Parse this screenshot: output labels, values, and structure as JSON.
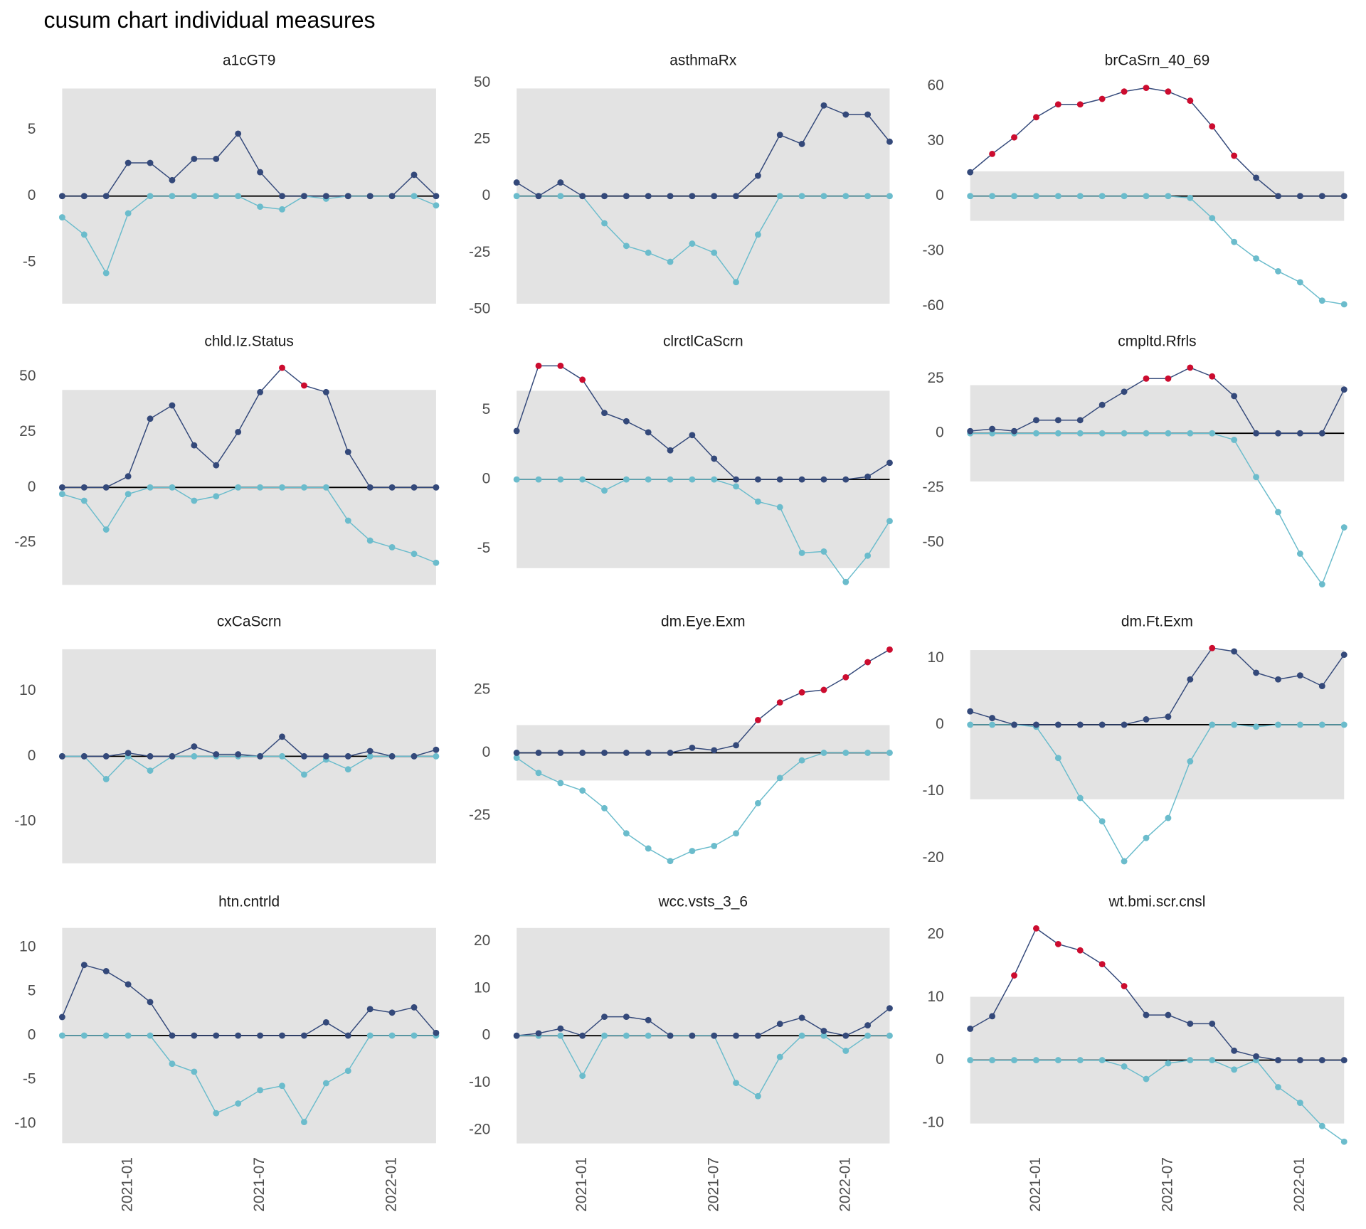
{
  "title": "cusum chart  individual measures",
  "chart_data": [
    {
      "type": "line",
      "title": "a1cGT9",
      "x": [
        "2020-10",
        "2020-11",
        "2020-12",
        "2021-01",
        "2021-02",
        "2021-03",
        "2021-04",
        "2021-05",
        "2021-06",
        "2021-07",
        "2021-08",
        "2021-09",
        "2021-10",
        "2021-11",
        "2021-12",
        "2022-01",
        "2022-02",
        "2022-03"
      ],
      "ylim": [
        -8.7,
        8.7
      ],
      "yticks": [
        -5,
        0,
        5
      ],
      "limit": 8.1,
      "band_color": "#e3e3e3",
      "series": [
        {
          "color": "#34497a",
          "alert_color": "#cc0c2f",
          "values": [
            0,
            0,
            0,
            2.5,
            2.5,
            1.2,
            2.8,
            2.8,
            4.7,
            1.8,
            0,
            0,
            0,
            0,
            0,
            0,
            1.6,
            0
          ]
        },
        {
          "color": "#6bbccc",
          "values": [
            -1.6,
            -2.9,
            -5.8,
            -1.3,
            0,
            0,
            0,
            0,
            0,
            -0.8,
            -1.0,
            0,
            -0.2,
            0,
            0,
            0,
            0,
            -0.7
          ]
        }
      ]
    },
    {
      "type": "line",
      "title": "asthmaRx",
      "x": [
        "2020-10",
        "2020-11",
        "2020-12",
        "2021-01",
        "2021-02",
        "2021-03",
        "2021-04",
        "2021-05",
        "2021-06",
        "2021-07",
        "2021-08",
        "2021-09",
        "2021-10",
        "2021-11",
        "2021-12",
        "2022-01",
        "2022-02",
        "2022-03"
      ],
      "ylim": [
        -51,
        51
      ],
      "yticks": [
        -50,
        -25,
        0,
        25,
        50
      ],
      "limit": 47.5,
      "band_color": "#e3e3e3",
      "series": [
        {
          "color": "#34497a",
          "alert_color": "#cc0c2f",
          "values": [
            6,
            0,
            6,
            0,
            0,
            0,
            0,
            0,
            0,
            0,
            0,
            9,
            27,
            23,
            40,
            36,
            36,
            24
          ]
        },
        {
          "color": "#6bbccc",
          "values": [
            0,
            0,
            0,
            0,
            -12,
            -22,
            -25,
            -29,
            -21,
            -25,
            -38,
            -17,
            0,
            0,
            0,
            0,
            0,
            0
          ]
        }
      ]
    },
    {
      "type": "line",
      "title": "brCaSrn_40_69",
      "x": [
        "2020-10",
        "2020-11",
        "2020-12",
        "2021-01",
        "2021-02",
        "2021-03",
        "2021-04",
        "2021-05",
        "2021-06",
        "2021-07",
        "2021-08",
        "2021-09",
        "2021-10",
        "2021-11",
        "2021-12",
        "2022-01",
        "2022-02",
        "2022-03"
      ],
      "ylim": [
        -63,
        63
      ],
      "yticks": [
        -60,
        -30,
        0,
        30,
        60
      ],
      "limit": 13.5,
      "band_color": "#e3e3e3",
      "series": [
        {
          "color": "#34497a",
          "alert_color": "#cc0c2f",
          "values": [
            13,
            23,
            32,
            43,
            50,
            50,
            53,
            57,
            59,
            57,
            52,
            38,
            22,
            10,
            0,
            0,
            0,
            0
          ]
        },
        {
          "color": "#6bbccc",
          "values": [
            0,
            0,
            0,
            0,
            0,
            0,
            0,
            0,
            0,
            0,
            -1,
            -12,
            -25,
            -34,
            -41,
            -47,
            -57,
            -59
          ]
        }
      ]
    },
    {
      "type": "line",
      "title": "chld.Iz.Status",
      "x": [
        "2020-10",
        "2020-11",
        "2020-12",
        "2021-01",
        "2021-02",
        "2021-03",
        "2021-04",
        "2021-05",
        "2021-06",
        "2021-07",
        "2021-08",
        "2021-09",
        "2021-10",
        "2021-11",
        "2021-12",
        "2022-01",
        "2022-02",
        "2022-03"
      ],
      "ylim": [
        -45.5,
        58
      ],
      "yticks": [
        -25,
        0,
        25,
        50
      ],
      "limit": 44,
      "band_color": "#e3e3e3",
      "series": [
        {
          "color": "#34497a",
          "alert_color": "#cc0c2f",
          "values": [
            0,
            0,
            0,
            5,
            31,
            37,
            19,
            10,
            25,
            43,
            54,
            46,
            43,
            16,
            0,
            0,
            0,
            0
          ]
        },
        {
          "color": "#6bbccc",
          "values": [
            -3,
            -6,
            -19,
            -3,
            0,
            0,
            -6,
            -4,
            0,
            0,
            0,
            0,
            0,
            -15,
            -24,
            -27,
            -30,
            -34
          ]
        }
      ]
    },
    {
      "type": "line",
      "title": "clrctlCaScrn",
      "x": [
        "2020-10",
        "2020-11",
        "2020-12",
        "2021-01",
        "2021-02",
        "2021-03",
        "2021-04",
        "2021-05",
        "2021-06",
        "2021-07",
        "2021-08",
        "2021-09",
        "2021-10",
        "2021-11",
        "2021-12",
        "2022-01",
        "2022-02",
        "2022-03"
      ],
      "ylim": [
        -7.85,
        8.7
      ],
      "yticks": [
        -5,
        0,
        5
      ],
      "limit": 6.4,
      "band_color": "#e3e3e3",
      "series": [
        {
          "color": "#34497a",
          "alert_color": "#cc0c2f",
          "values": [
            3.5,
            8.2,
            8.2,
            7.2,
            4.8,
            4.2,
            3.4,
            2.1,
            3.2,
            1.5,
            0,
            0,
            0,
            0,
            0,
            0,
            0.2,
            1.2
          ]
        },
        {
          "color": "#6bbccc",
          "values": [
            0,
            0,
            0,
            0,
            -0.8,
            0,
            0,
            0,
            0,
            0,
            -0.5,
            -1.6,
            -2.0,
            -5.3,
            -5.2,
            -7.4,
            -5.5,
            -3.0
          ]
        }
      ]
    },
    {
      "type": "line",
      "title": "cmpltd.Rfrls",
      "x": [
        "2020-10",
        "2020-11",
        "2020-12",
        "2021-01",
        "2021-02",
        "2021-03",
        "2021-04",
        "2021-05",
        "2021-06",
        "2021-07",
        "2021-08",
        "2021-09",
        "2021-10",
        "2021-11",
        "2021-12",
        "2022-01",
        "2022-02",
        "2022-03"
      ],
      "ylim": [
        -70.8,
        34
      ],
      "yticks": [
        -50,
        -25,
        0,
        25
      ],
      "limit": 22,
      "band_color": "#e3e3e3",
      "series": [
        {
          "color": "#34497a",
          "alert_color": "#cc0c2f",
          "values": [
            1,
            2,
            1,
            6,
            6,
            6,
            13,
            19,
            25,
            25,
            30,
            26,
            17,
            0,
            0,
            0,
            0,
            20
          ]
        },
        {
          "color": "#6bbccc",
          "values": [
            0,
            0,
            0,
            0,
            0,
            0,
            0,
            0,
            0,
            0,
            0,
            0,
            -3,
            -20,
            -36,
            -55,
            -69,
            -43
          ]
        }
      ]
    },
    {
      "type": "line",
      "title": "cxCaScrn",
      "x": [
        "2020-10",
        "2020-11",
        "2020-12",
        "2021-01",
        "2021-02",
        "2021-03",
        "2021-04",
        "2021-05",
        "2021-06",
        "2021-07",
        "2021-08",
        "2021-09",
        "2021-10",
        "2021-11",
        "2021-12",
        "2022-01",
        "2022-02",
        "2022-03"
      ],
      "ylim": [
        -16.9,
        17.7
      ],
      "yticks": [
        -10,
        0,
        10
      ],
      "limit": 16.4,
      "band_color": "#e3e3e3",
      "series": [
        {
          "color": "#34497a",
          "alert_color": "#cc0c2f",
          "values": [
            0,
            0,
            0,
            0.5,
            0,
            0,
            1.5,
            0.3,
            0.3,
            0,
            3,
            0,
            0,
            0,
            0.8,
            0,
            0,
            1
          ]
        },
        {
          "color": "#6bbccc",
          "values": [
            0,
            0,
            -3.5,
            0,
            -2.2,
            0,
            0,
            0,
            0,
            0,
            0,
            -2.8,
            -0.5,
            -2.0,
            0,
            0,
            0,
            0
          ]
        }
      ]
    },
    {
      "type": "line",
      "title": "dm.Eye.Exm",
      "x": [
        "2020-10",
        "2020-11",
        "2020-12",
        "2021-01",
        "2021-02",
        "2021-03",
        "2021-04",
        "2021-05",
        "2021-06",
        "2021-07",
        "2021-08",
        "2021-09",
        "2021-10",
        "2021-11",
        "2021-12",
        "2022-01",
        "2022-02",
        "2022-03"
      ],
      "ylim": [
        -45.2,
        44.5
      ],
      "yticks": [
        -25,
        0,
        25
      ],
      "limit": 11,
      "band_color": "#e3e3e3",
      "series": [
        {
          "color": "#34497a",
          "alert_color": "#cc0c2f",
          "values": [
            0,
            0,
            0,
            0,
            0,
            0,
            0,
            0,
            2,
            1,
            3,
            13,
            20,
            24,
            25,
            30,
            36,
            41
          ]
        },
        {
          "color": "#6bbccc",
          "values": [
            -2,
            -8,
            -12,
            -15,
            -22,
            -32,
            -38,
            -43,
            -39,
            -37,
            -32,
            -20,
            -10,
            -3,
            0,
            0,
            0,
            0
          ]
        }
      ]
    },
    {
      "type": "line",
      "title": "dm.Ft.Exm",
      "x": [
        "2020-10",
        "2020-11",
        "2020-12",
        "2021-01",
        "2021-02",
        "2021-03",
        "2021-04",
        "2021-05",
        "2021-06",
        "2021-07",
        "2021-08",
        "2021-09",
        "2021-10",
        "2021-11",
        "2021-12",
        "2022-01",
        "2022-02",
        "2022-03"
      ],
      "ylim": [
        -21.3,
        12.6
      ],
      "yticks": [
        -20,
        -10,
        0,
        10
      ],
      "limit": 11.2,
      "band_color": "#e3e3e3",
      "series": [
        {
          "color": "#34497a",
          "alert_color": "#cc0c2f",
          "values": [
            2,
            1,
            0,
            0,
            0,
            0,
            0,
            0,
            0.8,
            1.2,
            6.8,
            11.5,
            11,
            7.8,
            6.8,
            7.4,
            5.8,
            10.5
          ]
        },
        {
          "color": "#6bbccc",
          "values": [
            0,
            0,
            0,
            -0.3,
            -5,
            -11,
            -14.5,
            -20.5,
            -17,
            -14,
            -5.5,
            0,
            0,
            -0.3,
            0,
            0,
            0,
            0
          ]
        }
      ]
    },
    {
      "type": "line",
      "title": "htn.cntrld",
      "x": [
        "2020-10",
        "2020-11",
        "2020-12",
        "2021-01",
        "2021-02",
        "2021-03",
        "2021-04",
        "2021-05",
        "2021-06",
        "2021-07",
        "2021-08",
        "2021-09",
        "2021-10",
        "2021-11",
        "2021-12",
        "2022-01",
        "2022-02",
        "2022-03"
      ],
      "ylim": [
        -12.6,
        13
      ],
      "yticks": [
        -10,
        -5,
        0,
        5,
        10
      ],
      "xticks": [
        "2021-01",
        "2021-07",
        "2022-01"
      ],
      "limit": 12.2,
      "band_color": "#e3e3e3",
      "series": [
        {
          "color": "#34497a",
          "alert_color": "#cc0c2f",
          "values": [
            2.1,
            8,
            7.3,
            5.8,
            3.8,
            0,
            0,
            0,
            0,
            0,
            0,
            0,
            1.5,
            0,
            3,
            2.6,
            3.2,
            0.3
          ]
        },
        {
          "color": "#6bbccc",
          "values": [
            0,
            0,
            0,
            0,
            0,
            -3.2,
            -4.1,
            -8.8,
            -7.7,
            -6.2,
            -5.7,
            -9.8,
            -5.4,
            -4,
            0,
            0,
            0,
            0
          ]
        }
      ]
    },
    {
      "type": "line",
      "title": "wcc.vsts_3_6",
      "x": [
        "2020-10",
        "2020-11",
        "2020-12",
        "2021-01",
        "2021-02",
        "2021-03",
        "2021-04",
        "2021-05",
        "2021-06",
        "2021-07",
        "2021-08",
        "2021-09",
        "2021-10",
        "2021-11",
        "2021-12",
        "2022-01",
        "2022-02",
        "2022-03"
      ],
      "ylim": [
        -23.5,
        24.3
      ],
      "yticks": [
        -20,
        -10,
        0,
        10,
        20
      ],
      "xticks": [
        "2021-01",
        "2021-07",
        "2022-01"
      ],
      "limit": 22.8,
      "band_color": "#e3e3e3",
      "series": [
        {
          "color": "#34497a",
          "alert_color": "#cc0c2f",
          "values": [
            0,
            0.5,
            1.5,
            0,
            4,
            4,
            3.3,
            0,
            0,
            0,
            0,
            0,
            2.5,
            3.8,
            1,
            0,
            2.2,
            5.8
          ]
        },
        {
          "color": "#6bbccc",
          "values": [
            0,
            0,
            0,
            -8.5,
            0,
            0,
            0,
            0,
            0,
            0,
            -10,
            -12.8,
            -4.5,
            0,
            0,
            -3.2,
            0,
            0
          ]
        }
      ]
    },
    {
      "type": "line",
      "title": "wt.bmi.scr.cnsl",
      "x": [
        "2020-10",
        "2020-11",
        "2020-12",
        "2021-01",
        "2021-02",
        "2021-03",
        "2021-04",
        "2021-05",
        "2021-06",
        "2021-07",
        "2021-08",
        "2021-09",
        "2021-10",
        "2021-11",
        "2021-12",
        "2022-01",
        "2022-02",
        "2022-03"
      ],
      "ylim": [
        -13.8,
        22.2
      ],
      "yticks": [
        -10,
        0,
        10,
        20
      ],
      "xticks": [
        "2021-01",
        "2021-07",
        "2022-01"
      ],
      "limit": 10.1,
      "band_color": "#e3e3e3",
      "series": [
        {
          "color": "#34497a",
          "alert_color": "#cc0c2f",
          "values": [
            5,
            7,
            13.5,
            21,
            18.5,
            17.5,
            15.3,
            11.8,
            7.2,
            7.2,
            5.8,
            5.8,
            1.5,
            0.6,
            0,
            0,
            0,
            0
          ]
        },
        {
          "color": "#6bbccc",
          "values": [
            0,
            0,
            0,
            0,
            0,
            0,
            0,
            -1,
            -3,
            -0.5,
            0,
            0,
            -1.5,
            0,
            -4.3,
            -6.8,
            -10.5,
            -13
          ]
        }
      ]
    }
  ]
}
